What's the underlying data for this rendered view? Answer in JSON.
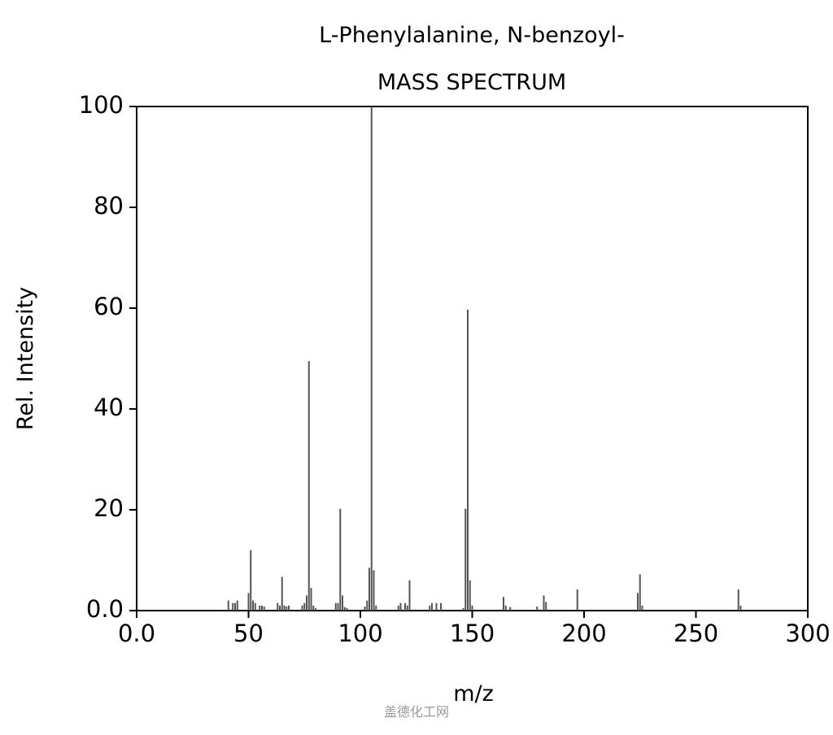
{
  "chart_data": {
    "type": "stem",
    "title": "L-Phenylalanine, N-benzoyl-",
    "subtitle": "MASS SPECTRUM",
    "x_label": "m/z",
    "y_label": "Rel. Intensity",
    "watermark": "盖德化工网",
    "color": "#555555",
    "x": [
      41,
      43,
      44,
      45,
      50,
      51,
      52,
      53,
      55,
      56,
      57,
      63,
      64,
      65,
      66,
      67,
      68,
      74,
      75,
      76,
      77,
      78,
      79,
      80,
      89,
      90,
      91,
      92,
      93,
      94,
      102,
      103,
      104,
      105,
      106,
      107,
      117,
      118,
      120,
      121,
      122,
      131,
      132,
      134,
      136,
      146,
      147,
      148,
      149,
      150,
      164,
      165,
      167,
      179,
      182,
      183,
      197,
      224,
      225,
      226,
      269,
      270
    ],
    "values": [
      2,
      1.5,
      1.5,
      2,
      3.5,
      12,
      2,
      1.5,
      1,
      1,
      0.8,
      1.5,
      1,
      6.7,
      1,
      0.8,
      1,
      1,
      1.5,
      3,
      49.5,
      4.5,
      1,
      0.5,
      1.5,
      1.5,
      20.2,
      3,
      0.7,
      0.5,
      0.8,
      2,
      8.5,
      100,
      8,
      1,
      1,
      1.5,
      1.5,
      1,
      6,
      1,
      1.5,
      1.5,
      1.5,
      0.5,
      20.2,
      59.7,
      6,
      1,
      2.7,
      1,
      0.7,
      0.8,
      3,
      1.7,
      4.2,
      3.5,
      7.2,
      1,
      4.2,
      1
    ],
    "xlim": [
      0,
      300
    ],
    "ylim": [
      0,
      100
    ],
    "xticks": [
      {
        "value": 0,
        "label": "0.0"
      },
      50,
      100,
      150,
      200,
      250,
      300
    ],
    "yticks": [
      {
        "value": 0,
        "label": "0.0"
      },
      20,
      40,
      60,
      80,
      100
    ]
  }
}
